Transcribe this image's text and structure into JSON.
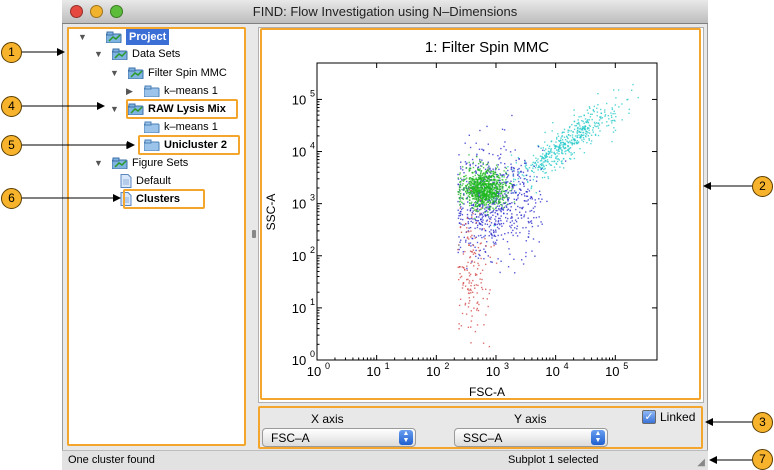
{
  "window": {
    "title": "FIND: Flow Investigation using N–Dimensions"
  },
  "tree": [
    {
      "label": "Project",
      "icon": "dataset-icon",
      "depth": 0,
      "expanded": true,
      "selected": true
    },
    {
      "label": "Data Sets",
      "icon": "dataset-icon",
      "depth": 1,
      "expanded": true
    },
    {
      "label": "Filter Spin MMC",
      "icon": "dataset-icon",
      "depth": 2,
      "expanded": true
    },
    {
      "label": "k–means 1",
      "icon": "folder-icon",
      "depth": 3,
      "expanded": false
    },
    {
      "label": "RAW Lysis Mix",
      "icon": "dataset-icon",
      "depth": 2,
      "expanded": true,
      "bold": true
    },
    {
      "label": "k–means 1",
      "icon": "folder-icon",
      "depth": 3
    },
    {
      "label": "Unicluster 2",
      "icon": "folder-icon",
      "depth": 3,
      "expanded": false,
      "bold": true
    },
    {
      "label": "Figure Sets",
      "icon": "dataset-icon",
      "depth": 1,
      "expanded": true
    },
    {
      "label": "Default",
      "icon": "document-icon",
      "depth": 2
    },
    {
      "label": "Clusters",
      "icon": "document-icon",
      "depth": 2,
      "bold": true
    }
  ],
  "plot": {
    "title": "1: Filter Spin MMC",
    "xlabel": "FSC-A",
    "ylabel": "SSC-A",
    "x_ticks": [
      "10",
      "10",
      "10",
      "10",
      "10",
      "10"
    ],
    "x_exps": [
      "0",
      "1",
      "2",
      "3",
      "4",
      "5"
    ],
    "y_ticks": [
      "10",
      "10",
      "10",
      "10",
      "10",
      "10"
    ],
    "y_exps": [
      "0",
      "1",
      "2",
      "3",
      "4",
      "5"
    ]
  },
  "chart_data": {
    "type": "scatter",
    "title": "1: Filter Spin MMC",
    "xlabel": "FSC-A",
    "ylabel": "SSC-A",
    "xscale": "log",
    "yscale": "log",
    "xlim": [
      1,
      500000
    ],
    "ylim": [
      1,
      500000
    ],
    "series": [
      {
        "color": "#1db81d",
        "center": [
          600,
          2000
        ]
      },
      {
        "color": "#2020c8",
        "center": [
          900,
          1200
        ]
      },
      {
        "color": "#20c8c8",
        "center": [
          15000,
          15000
        ]
      },
      {
        "color": "#d04040",
        "center": [
          400,
          60
        ]
      }
    ]
  },
  "axes_controls": {
    "x_label": "X axis",
    "y_label": "Y axis",
    "x_value": "FSC–A",
    "y_value": "SSC–A",
    "linked_label": "Linked",
    "linked_checked": true
  },
  "status": {
    "left": "One cluster found",
    "right": "Subplot 1 selected"
  },
  "callouts": [
    "1",
    "2",
    "3",
    "4",
    "5",
    "6",
    "7"
  ],
  "colors": {
    "highlight": "#f3a52c",
    "callout_fill": "#f7b32b",
    "selection": "#3b6fd6"
  }
}
